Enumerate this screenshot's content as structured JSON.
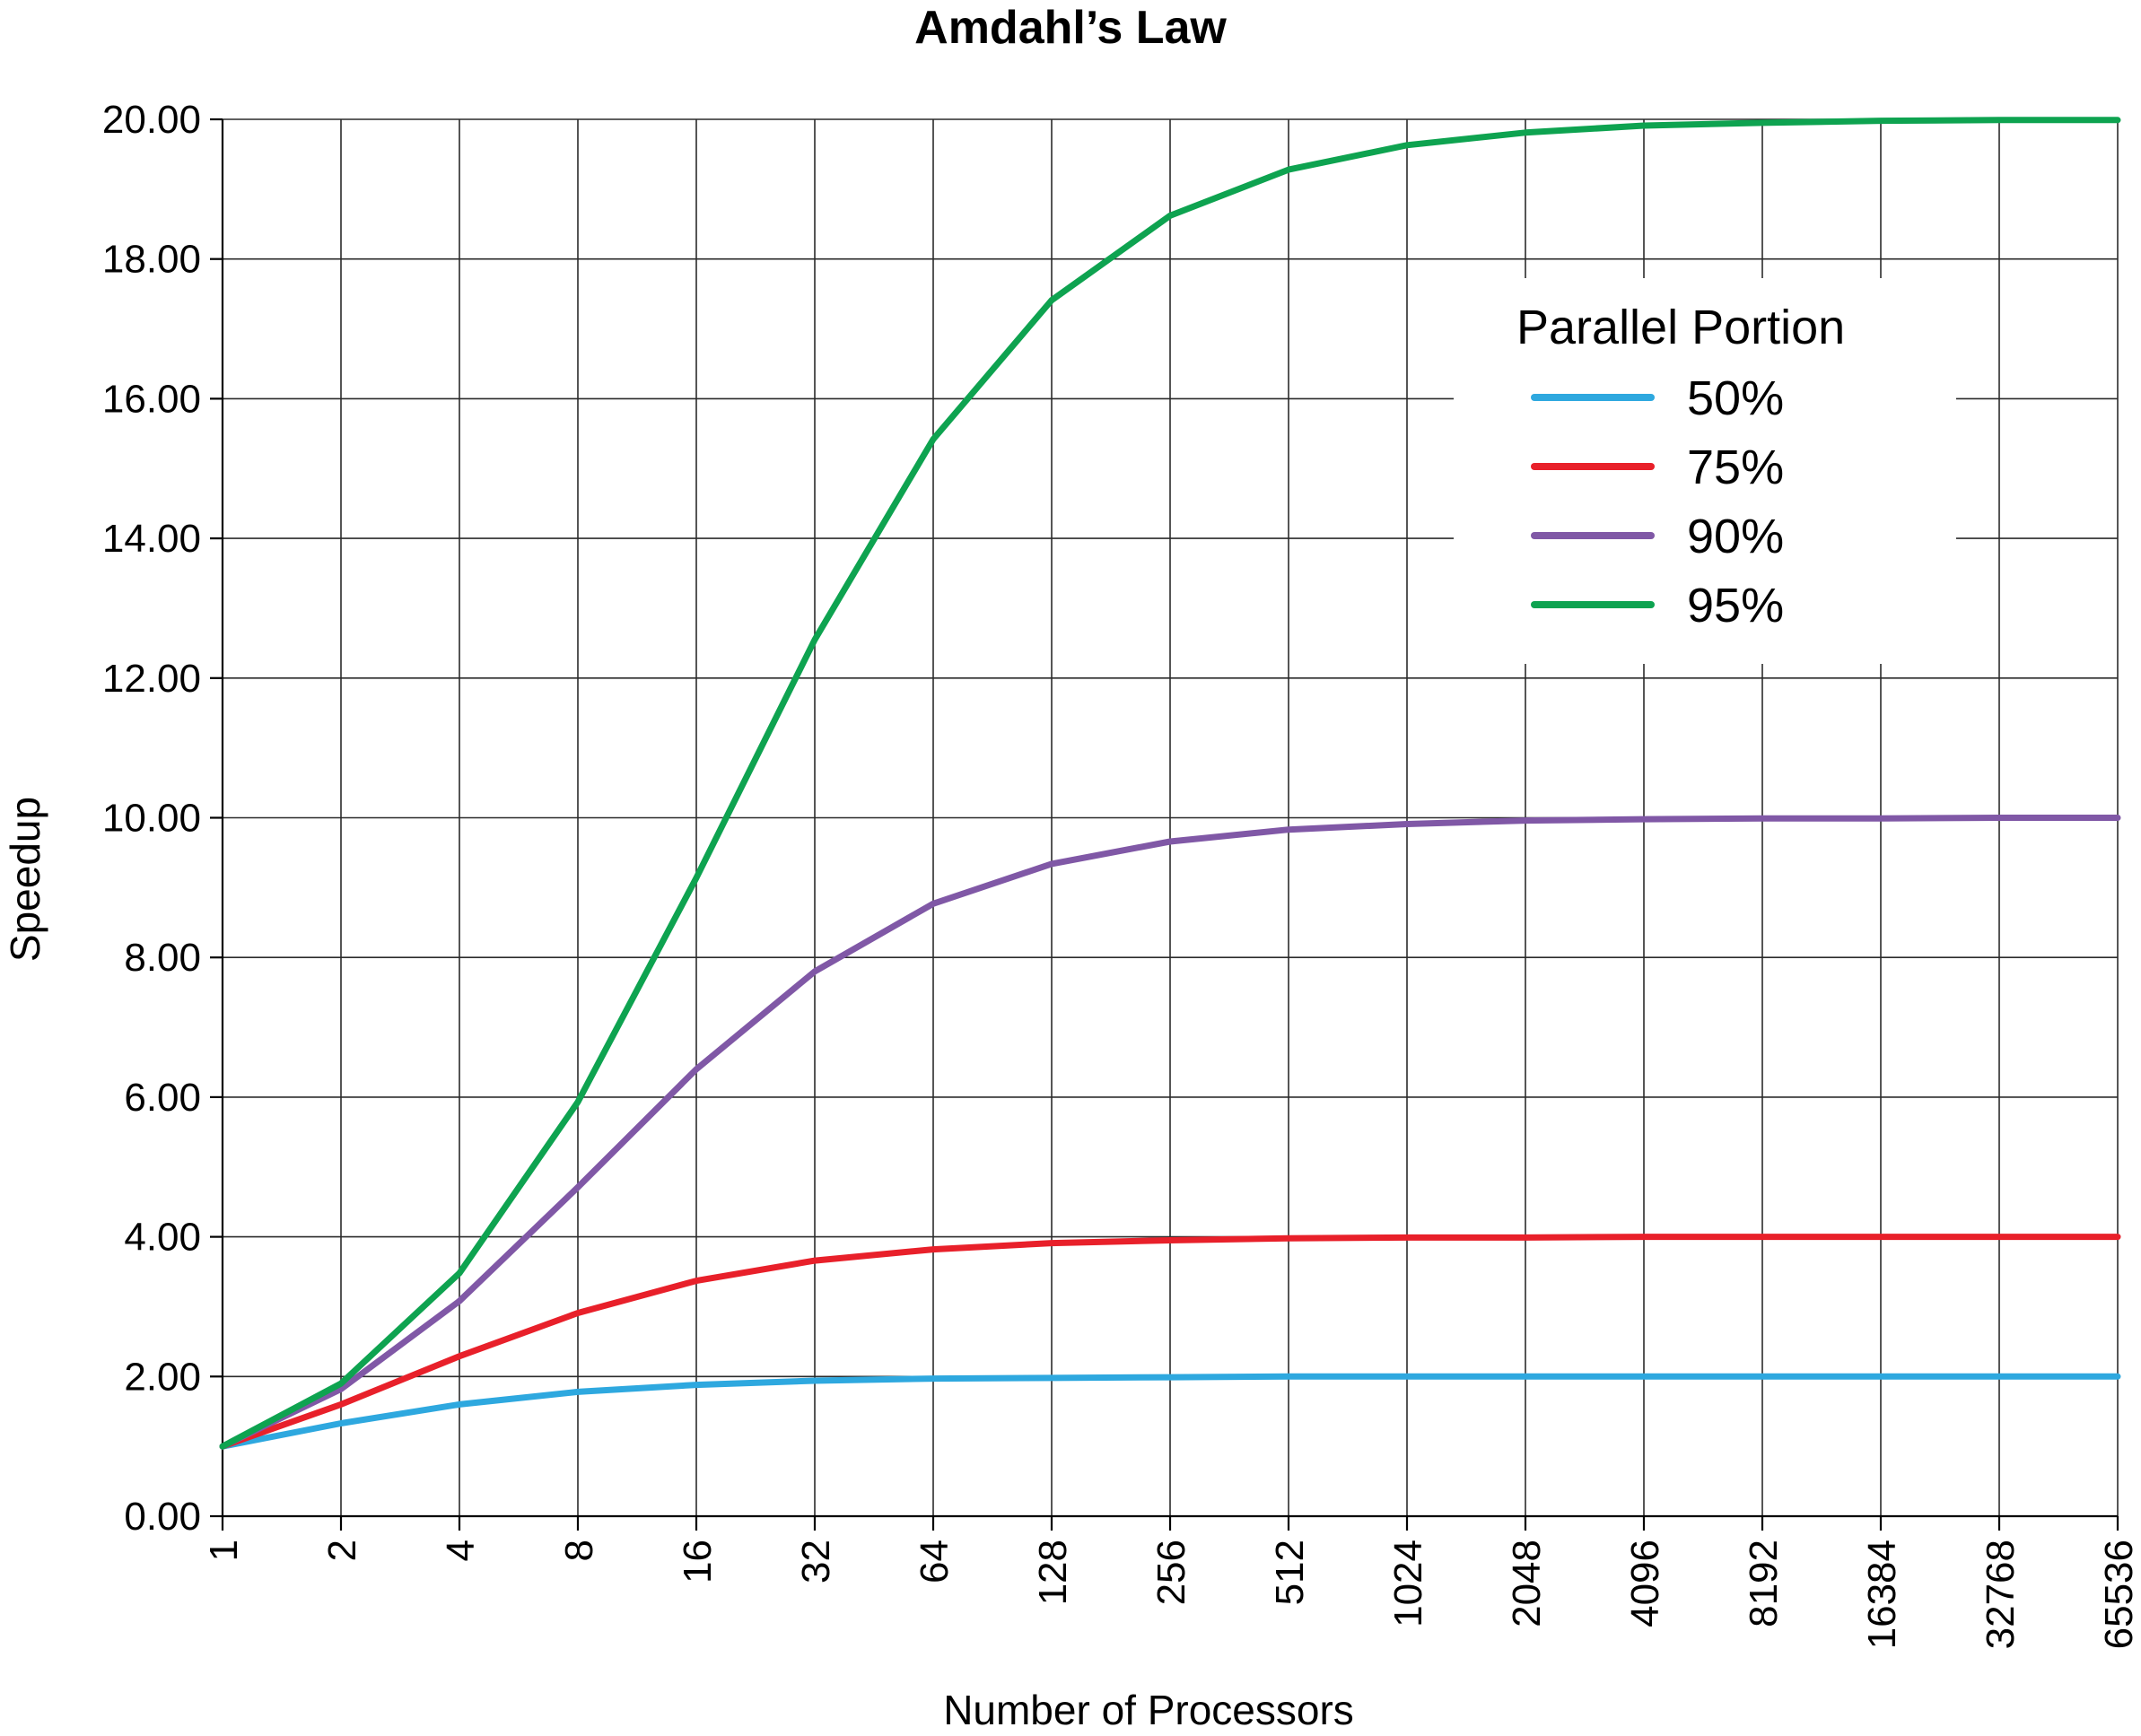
{
  "chart_data": {
    "type": "line",
    "title": "Amdahl’s Law",
    "xlabel": "Number of Processors",
    "ylabel": "Speedup",
    "x_scale": "log2",
    "categories": [
      "1",
      "2",
      "4",
      "8",
      "16",
      "32",
      "64",
      "128",
      "256",
      "512",
      "1024",
      "2048",
      "4096",
      "8192",
      "16384",
      "32768",
      "65536"
    ],
    "y_ticks": [
      "0.00",
      "2.00",
      "4.00",
      "6.00",
      "8.00",
      "10.00",
      "12.00",
      "14.00",
      "16.00",
      "18.00",
      "20.00"
    ],
    "ylim": [
      0,
      20
    ],
    "grid": true,
    "legend": {
      "title": "Parallel Portion",
      "placement": "top-right"
    },
    "series": [
      {
        "name": "50%",
        "color": "#2ea8df",
        "values": [
          1.0,
          1.33,
          1.6,
          1.78,
          1.88,
          1.94,
          1.97,
          1.98,
          1.99,
          2.0,
          2.0,
          2.0,
          2.0,
          2.0,
          2.0,
          2.0,
          2.0
        ]
      },
      {
        "name": "75%",
        "color": "#e8202a",
        "values": [
          1.0,
          1.6,
          2.29,
          2.91,
          3.37,
          3.66,
          3.82,
          3.91,
          3.95,
          3.98,
          3.99,
          3.99,
          4.0,
          4.0,
          4.0,
          4.0,
          4.0
        ]
      },
      {
        "name": "90%",
        "color": "#8058a6",
        "values": [
          1.0,
          1.82,
          3.08,
          4.71,
          6.4,
          7.8,
          8.77,
          9.34,
          9.66,
          9.83,
          9.91,
          9.96,
          9.98,
          9.99,
          9.99,
          10.0,
          10.0
        ]
      },
      {
        "name": "95%",
        "color": "#0ea350",
        "values": [
          1.0,
          1.9,
          3.48,
          5.93,
          9.14,
          12.55,
          15.42,
          17.41,
          18.62,
          19.28,
          19.63,
          19.81,
          19.91,
          19.95,
          19.98,
          19.99,
          19.99
        ]
      }
    ]
  }
}
